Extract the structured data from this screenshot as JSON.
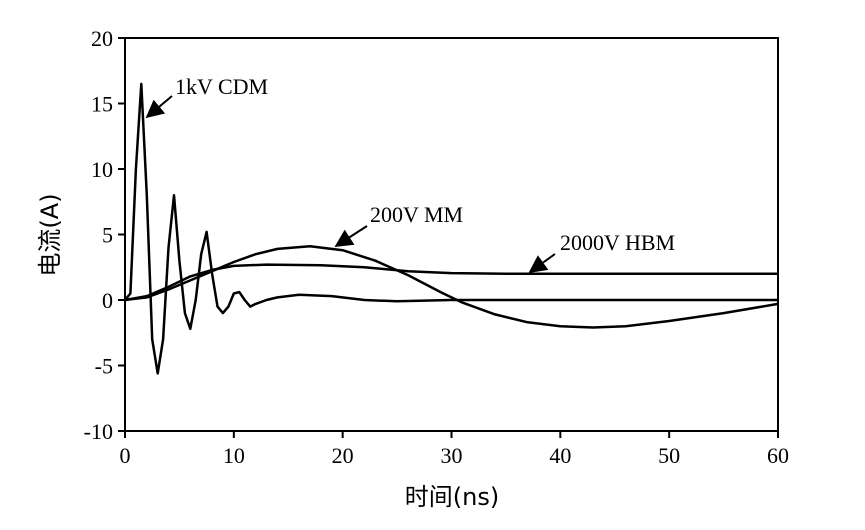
{
  "chart_data": {
    "type": "line",
    "xlabel": "时间(ns)",
    "ylabel": "电流(A)",
    "xlim": [
      0,
      60
    ],
    "xticks": [
      0,
      10,
      20,
      30,
      40,
      50,
      60
    ],
    "ylim": [
      -10,
      20
    ],
    "yticks": [
      -10,
      -5,
      0,
      5,
      10,
      15,
      20
    ],
    "series": [
      {
        "name": "1kV CDM",
        "color": "#000000",
        "x": [
          0,
          0.5,
          1,
          1.5,
          2,
          2.5,
          3,
          3.5,
          4,
          4.5,
          5,
          5.5,
          6,
          6.5,
          7,
          7.5,
          8,
          8.5,
          9,
          9.5,
          10,
          10.5,
          11,
          11.5,
          12,
          13,
          14,
          16,
          19,
          22,
          25,
          30,
          60
        ],
        "values": [
          0,
          0.5,
          10,
          16.5,
          8,
          -3,
          -5.6,
          -3,
          4,
          8,
          3,
          -1,
          -2.2,
          0,
          3.5,
          5.2,
          2,
          -0.5,
          -1,
          -0.5,
          0.5,
          0.6,
          0,
          -0.5,
          -0.3,
          0,
          0.2,
          0.4,
          0.3,
          0,
          -0.1,
          0,
          0
        ]
      },
      {
        "name": "200V MM",
        "color": "#000000",
        "x": [
          0,
          2,
          4,
          6,
          8,
          10,
          12,
          14,
          17,
          20,
          23,
          26,
          29,
          31,
          34,
          37,
          40,
          43,
          46,
          50,
          55,
          60
        ],
        "values": [
          0,
          0.2,
          0.8,
          1.5,
          2.2,
          2.9,
          3.5,
          3.9,
          4.1,
          3.8,
          3,
          1.9,
          0.6,
          -0.2,
          -1.1,
          -1.7,
          -2,
          -2.1,
          -2,
          -1.6,
          -1,
          -0.3
        ]
      },
      {
        "name": "2000V HBM",
        "color": "#000000",
        "x": [
          0,
          2,
          4,
          6,
          8,
          10,
          13,
          18,
          22,
          26,
          30,
          35,
          60
        ],
        "values": [
          0,
          0.3,
          1,
          1.8,
          2.3,
          2.6,
          2.7,
          2.65,
          2.5,
          2.2,
          2.05,
          2,
          2
        ]
      }
    ]
  }
}
